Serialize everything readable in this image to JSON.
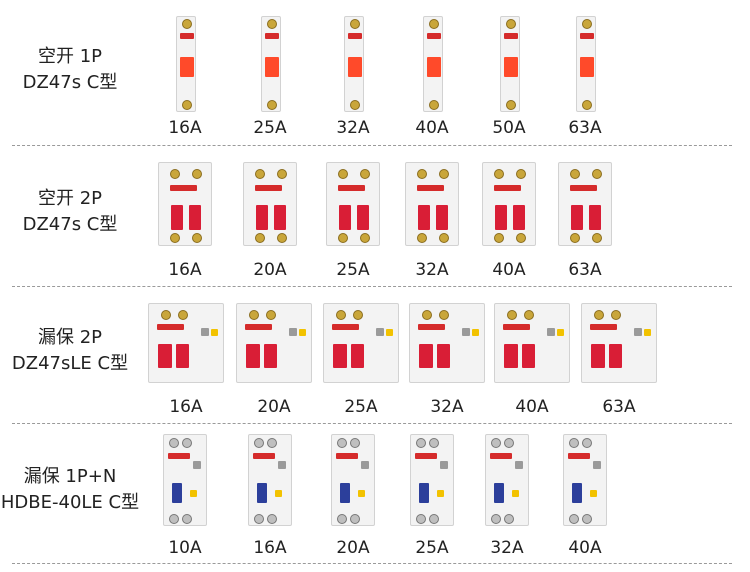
{
  "rows": [
    {
      "title_line1": "空开 1P",
      "title_line2": "DZ47s C型",
      "type": "1p",
      "ratings": [
        "16A",
        "25A",
        "32A",
        "40A",
        "50A",
        "63A"
      ]
    },
    {
      "title_line1": "空开 2P",
      "title_line2": "DZ47s C型",
      "type": "2p",
      "ratings": [
        "16A",
        "20A",
        "25A",
        "32A",
        "40A",
        "63A"
      ]
    },
    {
      "title_line1": "漏保 2P",
      "title_line2": "DZ47sLE C型",
      "type": "rcd2p",
      "ratings": [
        "16A",
        "20A",
        "25A",
        "32A",
        "40A",
        "63A"
      ]
    },
    {
      "title_line1": "漏保 1P+N",
      "title_line2": "HDBE-40LE C型",
      "type": "rcd1pn",
      "ratings": [
        "10A",
        "16A",
        "20A",
        "25A",
        "32A",
        "40A"
      ]
    }
  ],
  "colors": {
    "toggle_red": "#d91e36",
    "brand_red": "#d52b2b",
    "toggle_blue": "#2c3f9b",
    "test_yellow": "#f2c200"
  }
}
